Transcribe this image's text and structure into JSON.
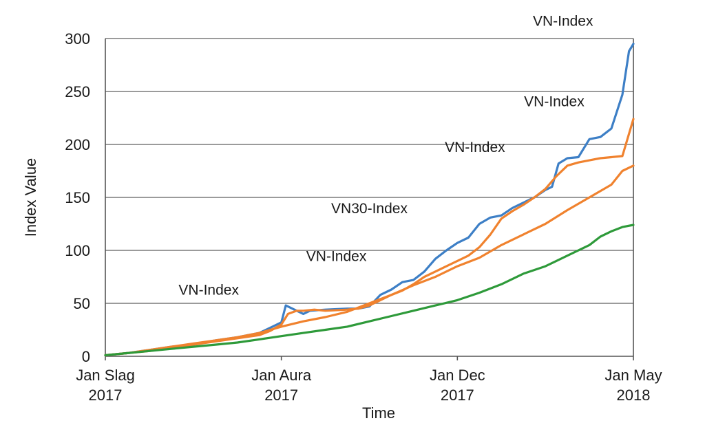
{
  "chart_data": {
    "type": "line",
    "title": "",
    "xlabel": "Time",
    "ylabel": "Index Value",
    "ylim": [
      0,
      300
    ],
    "yticks": [
      0,
      50,
      100,
      150,
      200,
      250,
      300
    ],
    "xlim": [
      0,
      24
    ],
    "grid": "horizontal",
    "x_ticks": [
      {
        "x": 0,
        "line1": "Jan Slag",
        "line2": "2017"
      },
      {
        "x": 8,
        "line1": "Jan Aura",
        "line2": "2017"
      },
      {
        "x": 16,
        "line1": "Jan Dec",
        "line2": "2017"
      },
      {
        "x": 24,
        "line1": "Jan May",
        "line2": "2018"
      }
    ],
    "series": [
      {
        "color": "#3d7fc6",
        "x": [
          0,
          1,
          2,
          3,
          4,
          5,
          6,
          7,
          7.5,
          8,
          8.2,
          8.7,
          9,
          9.3,
          10,
          11,
          11.5,
          12,
          12.5,
          13,
          13.5,
          14,
          14.5,
          15,
          15.5,
          16,
          16.5,
          17,
          17.5,
          18,
          18.5,
          19,
          19.5,
          20,
          20.3,
          20.6,
          21,
          21.5,
          22,
          22.5,
          23,
          23.5,
          23.8,
          24
        ],
        "values": [
          1,
          3,
          6,
          9,
          11,
          15,
          18,
          22,
          27,
          32,
          48,
          43,
          40,
          43,
          44,
          45,
          45,
          47,
          58,
          63,
          70,
          72,
          80,
          92,
          100,
          107,
          112,
          125,
          131,
          133,
          140,
          145,
          150,
          157,
          160,
          182,
          187,
          188,
          205,
          207,
          215,
          247,
          288,
          295
        ]
      },
      {
        "color": "#f0822e",
        "x": [
          0,
          1,
          2,
          3,
          4,
          5,
          6,
          7,
          7.5,
          8,
          8.3,
          8.7,
          9,
          9.5,
          10,
          11,
          11.5,
          12,
          12.5,
          13,
          13.5,
          14,
          14.5,
          15,
          15.5,
          16,
          16.5,
          17,
          17.5,
          18,
          18.5,
          19,
          19.5,
          20,
          20.5,
          21,
          21.5,
          22,
          22.5,
          23,
          23.5,
          24
        ],
        "values": [
          1,
          3,
          5,
          8,
          11,
          14,
          17,
          20,
          24,
          30,
          40,
          43,
          43,
          44,
          43,
          44,
          45,
          48,
          53,
          58,
          62,
          68,
          75,
          80,
          85,
          90,
          95,
          103,
          115,
          130,
          137,
          143,
          150,
          158,
          170,
          180,
          183,
          185,
          187,
          188,
          189,
          224
        ]
      },
      {
        "color": "#f0822e",
        "x": [
          0,
          1,
          2,
          3,
          4,
          5,
          6,
          7,
          8,
          9,
          10,
          11,
          12,
          13,
          14,
          15,
          16,
          17,
          18,
          19,
          20,
          21,
          22,
          23,
          23.5,
          24
        ],
        "values": [
          1,
          3,
          6,
          9,
          12,
          15,
          18,
          22,
          28,
          33,
          37,
          42,
          50,
          58,
          67,
          75,
          85,
          93,
          105,
          115,
          125,
          138,
          150,
          162,
          175,
          180
        ]
      },
      {
        "color": "#2e9a3a",
        "x": [
          0,
          1,
          2,
          3,
          4,
          5,
          6,
          7,
          8,
          9,
          10,
          11,
          12,
          13,
          14,
          15,
          16,
          17,
          18,
          19,
          20,
          21,
          22,
          22.5,
          23,
          23.5,
          24
        ],
        "values": [
          1,
          3,
          5,
          7,
          9,
          11,
          13,
          16,
          19,
          22,
          25,
          28,
          33,
          38,
          43,
          48,
          53,
          60,
          68,
          78,
          85,
          95,
          105,
          113,
          118,
          122,
          124
        ]
      }
    ],
    "annotations": [
      {
        "text": "VN-Index",
        "x": 20.8,
        "y": 312
      },
      {
        "text": "VN-Index",
        "x": 20.4,
        "y": 236
      },
      {
        "text": "VN-Index",
        "x": 16.8,
        "y": 193
      },
      {
        "text": "VN30-Index",
        "x": 12.0,
        "y": 135
      },
      {
        "text": "VN-Index",
        "x": 10.5,
        "y": 90
      },
      {
        "text": "VN-Index",
        "x": 4.7,
        "y": 58
      }
    ]
  }
}
